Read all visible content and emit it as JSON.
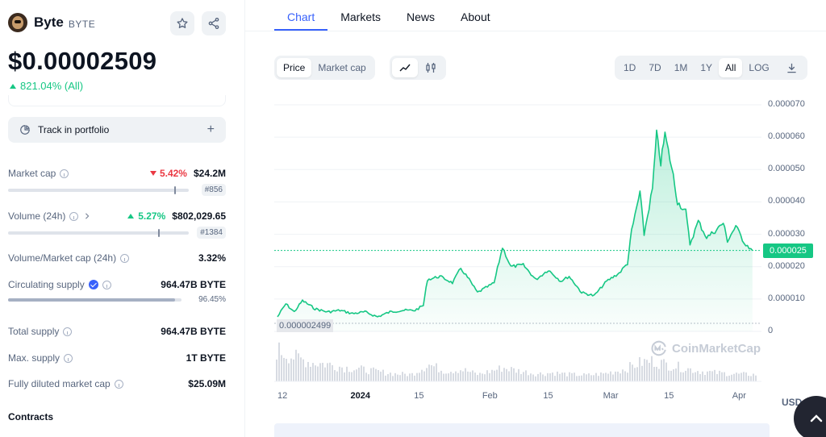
{
  "coin": {
    "name": "Byte",
    "symbol": "BYTE",
    "price": "$0.00002509",
    "change_all": "821.04% (All)"
  },
  "actions": {
    "track_portfolio": "Track in portfolio"
  },
  "stats": {
    "market_cap": {
      "label": "Market cap",
      "change": "5.42%",
      "value": "$24.2M",
      "rank": "#856",
      "marker_fraction": 0.92
    },
    "volume": {
      "label": "Volume (24h)",
      "change": "5.27%",
      "value": "$802,029.65",
      "rank": "#1384",
      "marker_fraction": 0.83
    },
    "vol_mcap": {
      "label": "Volume/Market cap (24h)",
      "value": "3.32%"
    },
    "circ_supply": {
      "label": "Circulating supply",
      "value": "964.47B BYTE",
      "percent": "96.45%",
      "fill_fraction": 0.9645
    },
    "total_supply": {
      "label": "Total supply",
      "value": "964.47B BYTE"
    },
    "max_supply": {
      "label": "Max. supply",
      "value": "1T BYTE"
    },
    "fdmc": {
      "label": "Fully diluted market cap",
      "value": "$25.09M"
    }
  },
  "contracts_heading": "Contracts",
  "tabs": [
    "Chart",
    "Markets",
    "News",
    "About"
  ],
  "chart_controls": {
    "type_options": [
      "Price",
      "Market cap"
    ],
    "ranges": [
      "1D",
      "7D",
      "1M",
      "1Y",
      "All",
      "LOG"
    ],
    "active_range": "All"
  },
  "colors": {
    "up": "#16c784",
    "down": "#ea3943",
    "accent": "#3861fb"
  },
  "chart_data": {
    "type": "area",
    "title": "",
    "currency": "USD",
    "y_ticks": [
      "0.000070",
      "0.000060",
      "0.000050",
      "0.000040",
      "0.000030",
      "0.000020",
      "0.000010",
      "0"
    ],
    "ylim": [
      0,
      7e-05
    ],
    "x_ticks": [
      "12",
      "2024",
      "15",
      "Feb",
      "15",
      "Mar",
      "15",
      "Apr"
    ],
    "current_price_label": "0.000025",
    "low_label": "0.000002499",
    "watermark": "CoinMarketCap",
    "price_series": [
      [
        "2023-12-12",
        4.5e-06
      ],
      [
        "2023-12-14",
        8.5e-06
      ],
      [
        "2023-12-16",
        6e-06
      ],
      [
        "2023-12-18",
        9.5e-06
      ],
      [
        "2023-12-21",
        7e-06
      ],
      [
        "2023-12-24",
        6e-06
      ],
      [
        "2023-12-27",
        6.5e-06
      ],
      [
        "2023-12-30",
        5.5e-06
      ],
      [
        "2024-01-02",
        6e-06
      ],
      [
        "2024-01-05",
        4.5e-06
      ],
      [
        "2024-01-08",
        6e-06
      ],
      [
        "2024-01-11",
        6.5e-06
      ],
      [
        "2024-01-14",
        6.5e-06
      ],
      [
        "2024-01-16",
        8e-06
      ],
      [
        "2024-01-17",
        1.6e-05
      ],
      [
        "2024-01-20",
        1.7e-05
      ],
      [
        "2024-01-23",
        1.5e-05
      ],
      [
        "2024-01-25",
        1.95e-05
      ],
      [
        "2024-01-27",
        1.6e-05
      ],
      [
        "2024-01-29",
        1.2e-05
      ],
      [
        "2024-01-31",
        1.35e-05
      ],
      [
        "2024-02-02",
        1.5e-05
      ],
      [
        "2024-02-04",
        2.6e-05
      ],
      [
        "2024-02-06",
        2e-05
      ],
      [
        "2024-02-09",
        2.05e-05
      ],
      [
        "2024-02-12",
        1.6e-05
      ],
      [
        "2024-02-15",
        1.9e-05
      ],
      [
        "2024-02-18",
        1.55e-05
      ],
      [
        "2024-02-20",
        1.7e-05
      ],
      [
        "2024-02-23",
        1.2e-05
      ],
      [
        "2024-02-26",
        1.1e-05
      ],
      [
        "2024-02-29",
        1.55e-05
      ],
      [
        "2024-03-03",
        1.8e-05
      ],
      [
        "2024-03-05",
        2.1e-05
      ],
      [
        "2024-03-06",
        3.1e-05
      ],
      [
        "2024-03-08",
        4.3e-05
      ],
      [
        "2024-03-09",
        3e-05
      ],
      [
        "2024-03-11",
        4.4e-05
      ],
      [
        "2024-03-12",
        6.1e-05
      ],
      [
        "2024-03-13",
        5.2e-05
      ],
      [
        "2024-03-14",
        6.1e-05
      ],
      [
        "2024-03-16",
        4.8e-05
      ],
      [
        "2024-03-17",
        4e-05
      ],
      [
        "2024-03-19",
        3.7e-05
      ],
      [
        "2024-03-20",
        2.7e-05
      ],
      [
        "2024-03-22",
        3.4e-05
      ],
      [
        "2024-03-24",
        2.9e-05
      ],
      [
        "2024-03-26",
        3.1e-05
      ],
      [
        "2024-03-28",
        3.35e-05
      ],
      [
        "2024-03-29",
        2.8e-05
      ],
      [
        "2024-03-31",
        3.25e-05
      ],
      [
        "2024-04-02",
        2.75e-05
      ],
      [
        "2024-04-04",
        2.5e-05
      ]
    ],
    "volume_series": [
      [
        "2023-12-12",
        0.9
      ],
      [
        "2023-12-16",
        0.7
      ],
      [
        "2023-12-20",
        0.55
      ],
      [
        "2023-12-24",
        0.5
      ],
      [
        "2023-12-28",
        0.4
      ],
      [
        "2024-01-01",
        0.35
      ],
      [
        "2024-01-05",
        0.28
      ],
      [
        "2024-01-09",
        0.22
      ],
      [
        "2024-01-13",
        0.2
      ],
      [
        "2024-01-17",
        0.5
      ],
      [
        "2024-01-21",
        0.3
      ],
      [
        "2024-01-25",
        0.35
      ],
      [
        "2024-01-29",
        0.2
      ],
      [
        "2024-02-04",
        0.4
      ],
      [
        "2024-02-08",
        0.3
      ],
      [
        "2024-02-12",
        0.22
      ],
      [
        "2024-02-16",
        0.25
      ],
      [
        "2024-02-20",
        0.2
      ],
      [
        "2024-02-24",
        0.18
      ],
      [
        "2024-02-28",
        0.22
      ],
      [
        "2024-03-04",
        0.35
      ],
      [
        "2024-03-08",
        0.55
      ],
      [
        "2024-03-11",
        0.6
      ],
      [
        "2024-03-14",
        0.5
      ],
      [
        "2024-03-18",
        0.4
      ],
      [
        "2024-03-22",
        0.3
      ],
      [
        "2024-03-26",
        0.25
      ],
      [
        "2024-03-30",
        0.22
      ],
      [
        "2024-04-03",
        0.2
      ]
    ]
  }
}
